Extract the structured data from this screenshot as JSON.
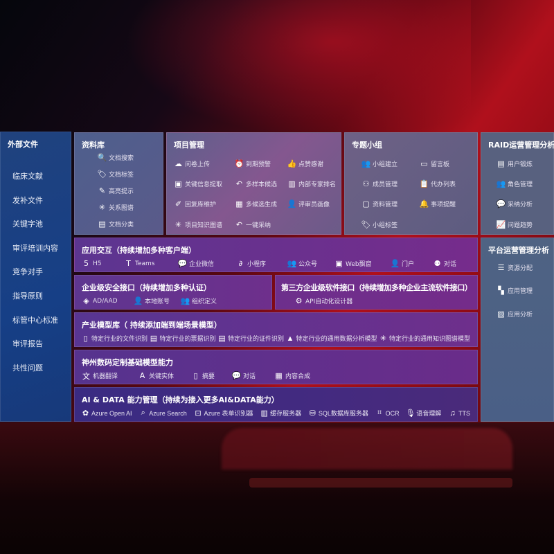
{
  "sidebar": {
    "title": "外部文件",
    "items": [
      "临床文献",
      "发补文件",
      "关键字池",
      "审评培训内容",
      "竞争对手",
      "指导原则",
      "标管中心标准",
      "审评报告",
      "共性问题"
    ]
  },
  "panels": {
    "lib": {
      "title": "资料库",
      "items": [
        {
          "label": "文档搜索",
          "icon": "document-search-icon"
        },
        {
          "label": "文档标签",
          "icon": "tag-icon"
        },
        {
          "label": "高亮提示",
          "icon": "pen-icon"
        },
        {
          "label": "关系图谱",
          "icon": "graph-icon"
        },
        {
          "label": "文档分类",
          "icon": "document-category-icon"
        }
      ]
    },
    "proj": {
      "title": "项目管理",
      "items": [
        {
          "label": "问卷上传",
          "icon": "cloud-upload-icon"
        },
        {
          "label": "到期预警",
          "icon": "alarm-icon"
        },
        {
          "label": "点赞感谢",
          "icon": "thumbs-up-icon"
        },
        {
          "label": "关键信息提取",
          "icon": "window-icon"
        },
        {
          "label": "多样本候选",
          "icon": "reply-icon"
        },
        {
          "label": "内部专家排名",
          "icon": "ranking-icon"
        },
        {
          "label": "回复库维护",
          "icon": "edit-icon"
        },
        {
          "label": "多候选生成",
          "icon": "puzzle-icon"
        },
        {
          "label": "评审员画像",
          "icon": "user-icon"
        },
        {
          "label": "项目知识图谱",
          "icon": "graph-icon"
        },
        {
          "label": "一键采纳",
          "icon": "reply-icon"
        }
      ]
    },
    "group": {
      "title": "专题小组",
      "items": [
        {
          "label": "小组建立",
          "icon": "users-icon"
        },
        {
          "label": "留言板",
          "icon": "bbs-icon"
        },
        {
          "label": "成员管理",
          "icon": "user-add-icon"
        },
        {
          "label": "代办列表",
          "icon": "clipboard-icon"
        },
        {
          "label": "资料管理",
          "icon": "folder-icon"
        },
        {
          "label": "事项提醒",
          "icon": "bell-icon"
        },
        {
          "label": "小组标签",
          "icon": "tag-icon"
        }
      ]
    },
    "raid": {
      "title": "RAID运营管理分析",
      "items": [
        {
          "label": "用户锻炼",
          "icon": "id-card-icon"
        },
        {
          "label": "角色管理",
          "icon": "users-icon"
        },
        {
          "label": "采纳分析",
          "icon": "qa-icon"
        },
        {
          "label": "问题趋势",
          "icon": "trend-icon"
        }
      ]
    },
    "plat": {
      "title": "平台运营管理分析",
      "items": [
        {
          "label": "资源分配",
          "icon": "list-icon"
        },
        {
          "label": "应用管理",
          "icon": "apps-icon"
        },
        {
          "label": "应用分析",
          "icon": "analysis-icon"
        }
      ]
    },
    "app": {
      "title": "应用交互（持续增加多种客户端）",
      "items": [
        {
          "label": "H5",
          "icon": "html5-icon"
        },
        {
          "label": "Teams",
          "icon": "teams-icon"
        },
        {
          "label": "企业微信",
          "icon": "wecom-icon"
        },
        {
          "label": "小程序",
          "icon": "miniprogram-icon"
        },
        {
          "label": "公众号",
          "icon": "users-icon"
        },
        {
          "label": "Web飘窗",
          "icon": "window-icon"
        },
        {
          "label": "门户",
          "icon": "portal-icon"
        },
        {
          "label": "对话",
          "icon": "chat-users-icon"
        }
      ]
    },
    "sec": {
      "title": "企业级安全接口（持续增加多种认证）",
      "items": [
        {
          "label": "AD/AAD",
          "icon": "diamond-icon"
        },
        {
          "label": "本地账号",
          "icon": "user-icon"
        },
        {
          "label": "组织定义",
          "icon": "org-icon"
        }
      ]
    },
    "third": {
      "title": "第三方企业级软件接口（持续增加多种企业主流软件接口）",
      "items": [
        {
          "label": "API自动化设计器",
          "icon": "gear-icon"
        }
      ]
    },
    "ind": {
      "title": "产业模型库（ 持续添加端到端场景模型）",
      "items": [
        {
          "label": "特定行业的文件识别",
          "icon": "file-icon"
        },
        {
          "label": "特定行业的票据识别",
          "icon": "receipt-icon"
        },
        {
          "label": "特定行业的证件识别",
          "icon": "id-card-icon"
        },
        {
          "label": "特定行业的通用数据分析模型",
          "icon": "chart-icon"
        },
        {
          "label": "特定行业的通用知识图谱模型",
          "icon": "graph-icon"
        }
      ]
    },
    "base": {
      "title": "神州数码定制基础模型能力",
      "items": [
        {
          "label": "机器翻译",
          "icon": "translate-icon"
        },
        {
          "label": "关键实体",
          "icon": "entity-icon"
        },
        {
          "label": "摘要",
          "icon": "document-icon"
        },
        {
          "label": "对话",
          "icon": "chat-icon"
        },
        {
          "label": "内容合成",
          "icon": "puzzle-icon"
        }
      ]
    },
    "ai": {
      "title": "AI & DATA 能力管理（持续为接入更多AI&DATA能力）",
      "items": [
        {
          "label": "Azure Open AI",
          "icon": "openai-icon"
        },
        {
          "label": "Azure Search",
          "icon": "search-icon"
        },
        {
          "label": "Azure 表单识别器",
          "icon": "form-icon"
        },
        {
          "label": "缓存服务器",
          "icon": "server-icon"
        },
        {
          "label": "SQL数据库服务器",
          "icon": "database-icon"
        },
        {
          "label": "OCR",
          "icon": "ocr-icon"
        },
        {
          "label": "语音理解",
          "icon": "voice-icon"
        },
        {
          "label": "TTS",
          "icon": "tts-icon"
        }
      ]
    }
  }
}
